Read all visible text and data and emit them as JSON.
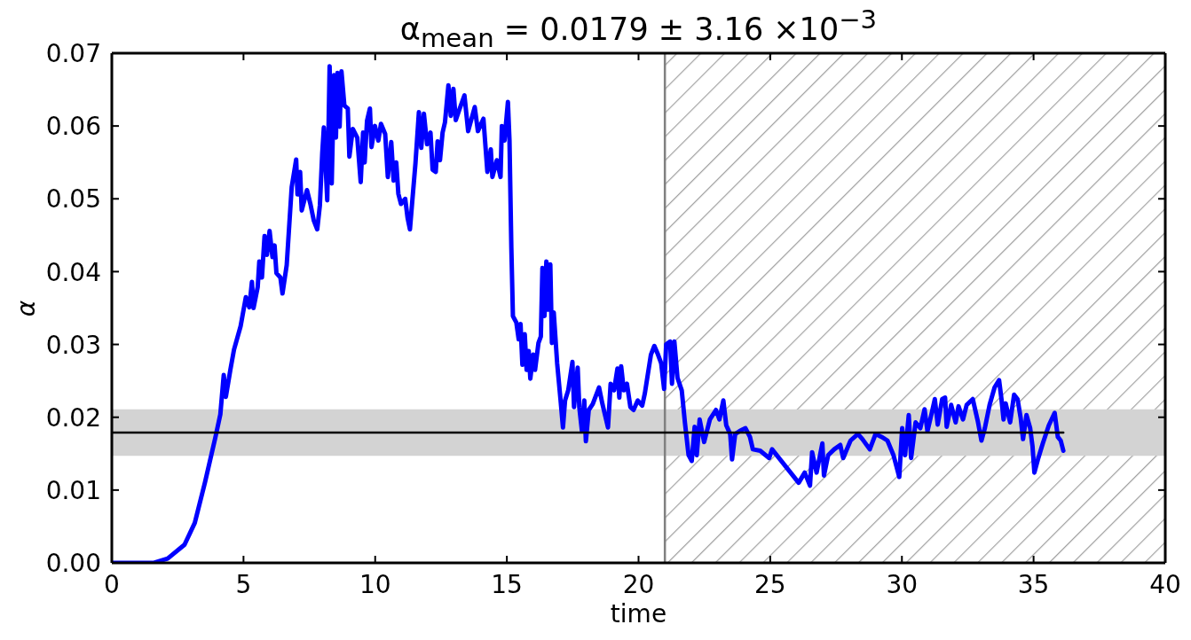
{
  "chart_data": {
    "type": "line",
    "title": "α$_{mean}$ = 0.0179 ± 3.16 ×10$^{−3}$",
    "xlabel": "time",
    "ylabel": "α",
    "xlim": [
      0,
      40
    ],
    "xticks": [
      0,
      5,
      10,
      15,
      20,
      25,
      30,
      35,
      40
    ],
    "ylim": [
      0,
      0.07
    ],
    "yticks": [
      {
        "value": 0,
        "label": "0.00"
      },
      {
        "value": 0.01,
        "label": "0.01"
      },
      {
        "value": 0.02,
        "label": "0.02"
      },
      {
        "value": 0.03,
        "label": "0.03"
      },
      {
        "value": 0.04,
        "label": "0.04"
      },
      {
        "value": 0.05,
        "label": "0.05"
      },
      {
        "value": 0.06,
        "label": "0.06"
      },
      {
        "value": 0.07,
        "label": "0.07"
      }
    ],
    "marker": "none",
    "bands": [
      {
        "axis": "x",
        "from": 21,
        "to": 40,
        "color": "#a0a0a0"
      },
      {
        "axis": "y",
        "from": 0.0147,
        "to": 0.0211,
        "color": "#d3d3d3"
      }
    ],
    "ref_lines": [
      {
        "axis": "x",
        "value": 21,
        "color": "#808080"
      }
    ],
    "series": [
      {
        "color": "#0000ff",
        "x": [
          0,
          1.6,
          2.12,
          2.76,
          3.15,
          3.54,
          3.93,
          4.12,
          4.25,
          4.33,
          4.5,
          4.64,
          4.89,
          5.09,
          5.22,
          5.32,
          5.38,
          5.54,
          5.6,
          5.7,
          5.8,
          5.89,
          5.99,
          6.1,
          6.18,
          6.25,
          6.4,
          6.48,
          6.64,
          6.83,
          7.0,
          7.05,
          7.15,
          7.21,
          7.41,
          7.54,
          7.67,
          7.8,
          7.9,
          7.99,
          8.05,
          8.18,
          8.27,
          8.35,
          8.44,
          8.51,
          8.57,
          8.65,
          8.72,
          8.83,
          8.96,
          9.02,
          9.15,
          9.32,
          9.45,
          9.54,
          9.6,
          9.69,
          9.8,
          9.86,
          9.99,
          10.12,
          10.22,
          10.38,
          10.48,
          10.61,
          10.7,
          10.8,
          10.88,
          10.98,
          11.14,
          11.23,
          11.32,
          11.4,
          11.53,
          11.66,
          11.75,
          11.85,
          11.97,
          12.1,
          12.18,
          12.3,
          12.37,
          12.46,
          12.56,
          12.65,
          12.78,
          12.87,
          12.97,
          13.06,
          13.21,
          13.39,
          13.53,
          13.78,
          13.9,
          14.11,
          14.26,
          14.39,
          14.45,
          14.62,
          14.76,
          14.81,
          14.91,
          15.04,
          15.1,
          15.17,
          15.23,
          15.36,
          15.45,
          15.52,
          15.59,
          15.68,
          15.75,
          15.83,
          15.89,
          16.0,
          16.07,
          16.2,
          16.29,
          16.35,
          16.43,
          16.5,
          16.56,
          16.65,
          16.71,
          16.78,
          16.91,
          17.04,
          17.13,
          17.21,
          17.33,
          17.49,
          17.55,
          17.69,
          17.75,
          17.85,
          17.94,
          18.0,
          18.11,
          18.26,
          18.5,
          18.63,
          18.84,
          18.94,
          19.07,
          19.2,
          19.27,
          19.34,
          19.44,
          19.56,
          19.69,
          19.81,
          19.97,
          20.14,
          20.24,
          20.47,
          20.6,
          20.74,
          20.86,
          20.97,
          21.05,
          21.2,
          21.27,
          21.36,
          21.48,
          21.64,
          21.76,
          21.9,
          22.02,
          22.13,
          22.21,
          22.32,
          22.49,
          22.71,
          22.94,
          23.07,
          23.22,
          23.33,
          23.48,
          23.55,
          23.67,
          23.84,
          24.06,
          24.23,
          24.34,
          24.62,
          24.96,
          25.07,
          26.08,
          26.31,
          26.51,
          26.59,
          26.76,
          26.98,
          27.04,
          27.2,
          27.43,
          27.66,
          27.77,
          28.05,
          28.33,
          28.5,
          28.78,
          29.0,
          29.23,
          29.45,
          29.68,
          29.9,
          30.01,
          30.12,
          30.26,
          30.35,
          30.52,
          30.7,
          30.86,
          30.97,
          31.14,
          31.25,
          31.36,
          31.53,
          31.64,
          31.7,
          31.87,
          32.04,
          32.15,
          32.32,
          32.46,
          32.69,
          32.88,
          33.02,
          33.15,
          33.33,
          33.52,
          33.69,
          33.78,
          33.86,
          33.94,
          34.11,
          34.26,
          34.39,
          34.51,
          34.6,
          34.73,
          34.87,
          34.96,
          35.03,
          35.18,
          35.35,
          35.58,
          35.8,
          35.92,
          36.03,
          36.13
        ],
        "values": [
          0,
          0,
          0.0006,
          0.0025,
          0.0055,
          0.0111,
          0.0172,
          0.0204,
          0.0258,
          0.0228,
          0.0265,
          0.0293,
          0.0325,
          0.0365,
          0.0351,
          0.0386,
          0.035,
          0.0379,
          0.0414,
          0.0392,
          0.0449,
          0.0423,
          0.0456,
          0.042,
          0.0436,
          0.0398,
          0.0392,
          0.037,
          0.0409,
          0.0516,
          0.0554,
          0.0506,
          0.0537,
          0.0484,
          0.0512,
          0.0493,
          0.047,
          0.0458,
          0.0491,
          0.0563,
          0.0598,
          0.0498,
          0.0682,
          0.0521,
          0.067,
          0.0584,
          0.0673,
          0.0599,
          0.0675,
          0.0628,
          0.0624,
          0.0558,
          0.0596,
          0.0584,
          0.0523,
          0.0591,
          0.055,
          0.0607,
          0.0624,
          0.0571,
          0.06,
          0.058,
          0.0603,
          0.0589,
          0.053,
          0.0578,
          0.0525,
          0.055,
          0.0507,
          0.0493,
          0.05,
          0.0474,
          0.0458,
          0.0493,
          0.0549,
          0.0619,
          0.057,
          0.0617,
          0.0575,
          0.0591,
          0.054,
          0.0537,
          0.0579,
          0.0553,
          0.0591,
          0.0605,
          0.0656,
          0.0614,
          0.0651,
          0.0608,
          0.0624,
          0.0642,
          0.0593,
          0.0626,
          0.0593,
          0.061,
          0.0537,
          0.0568,
          0.053,
          0.0553,
          0.053,
          0.06,
          0.058,
          0.0633,
          0.058,
          0.0433,
          0.0339,
          0.033,
          0.0307,
          0.0328,
          0.0272,
          0.0314,
          0.0265,
          0.0291,
          0.0253,
          0.0286,
          0.0265,
          0.0302,
          0.0311,
          0.0405,
          0.0339,
          0.0414,
          0.0348,
          0.041,
          0.0302,
          0.0344,
          0.0274,
          0.0223,
          0.0186,
          0.0223,
          0.0237,
          0.0276,
          0.0214,
          0.0268,
          0.0214,
          0.0181,
          0.0223,
          0.0167,
          0.021,
          0.0218,
          0.0241,
          0.0218,
          0.0186,
          0.0246,
          0.0237,
          0.0267,
          0.0227,
          0.027,
          0.0237,
          0.0246,
          0.0214,
          0.021,
          0.0223,
          0.0216,
          0.0233,
          0.0286,
          0.0298,
          0.0286,
          0.0274,
          0.0239,
          0.03,
          0.0304,
          0.0246,
          0.0304,
          0.0254,
          0.0237,
          0.0193,
          0.0148,
          0.014,
          0.0187,
          0.0148,
          0.0197,
          0.0166,
          0.0197,
          0.021,
          0.0197,
          0.0223,
          0.0189,
          0.0177,
          0.0142,
          0.0177,
          0.0181,
          0.0185,
          0.0173,
          0.0156,
          0.0154,
          0.0144,
          0.0156,
          0.011,
          0.0124,
          0.0106,
          0.0152,
          0.0124,
          0.0164,
          0.012,
          0.0148,
          0.0156,
          0.0162,
          0.0144,
          0.0168,
          0.0177,
          0.017,
          0.0156,
          0.0177,
          0.0173,
          0.0168,
          0.0148,
          0.0118,
          0.0185,
          0.0148,
          0.0203,
          0.0144,
          0.0193,
          0.0185,
          0.0211,
          0.0181,
          0.0207,
          0.0225,
          0.019,
          0.0225,
          0.0227,
          0.0187,
          0.0217,
          0.0193,
          0.0215,
          0.0197,
          0.0217,
          0.0225,
          0.0195,
          0.0168,
          0.0185,
          0.0217,
          0.0241,
          0.0251,
          0.0225,
          0.0197,
          0.0219,
          0.0193,
          0.0231,
          0.0225,
          0.0199,
          0.017,
          0.0203,
          0.0185,
          0.016,
          0.0124,
          0.0144,
          0.0164,
          0.0189,
          0.0206,
          0.0173,
          0.0168,
          0.0154
        ]
      },
      {
        "color": "#000000",
        "x": [
          0,
          36.13
        ],
        "values": [
          0.0179,
          0.0179
        ]
      }
    ]
  }
}
